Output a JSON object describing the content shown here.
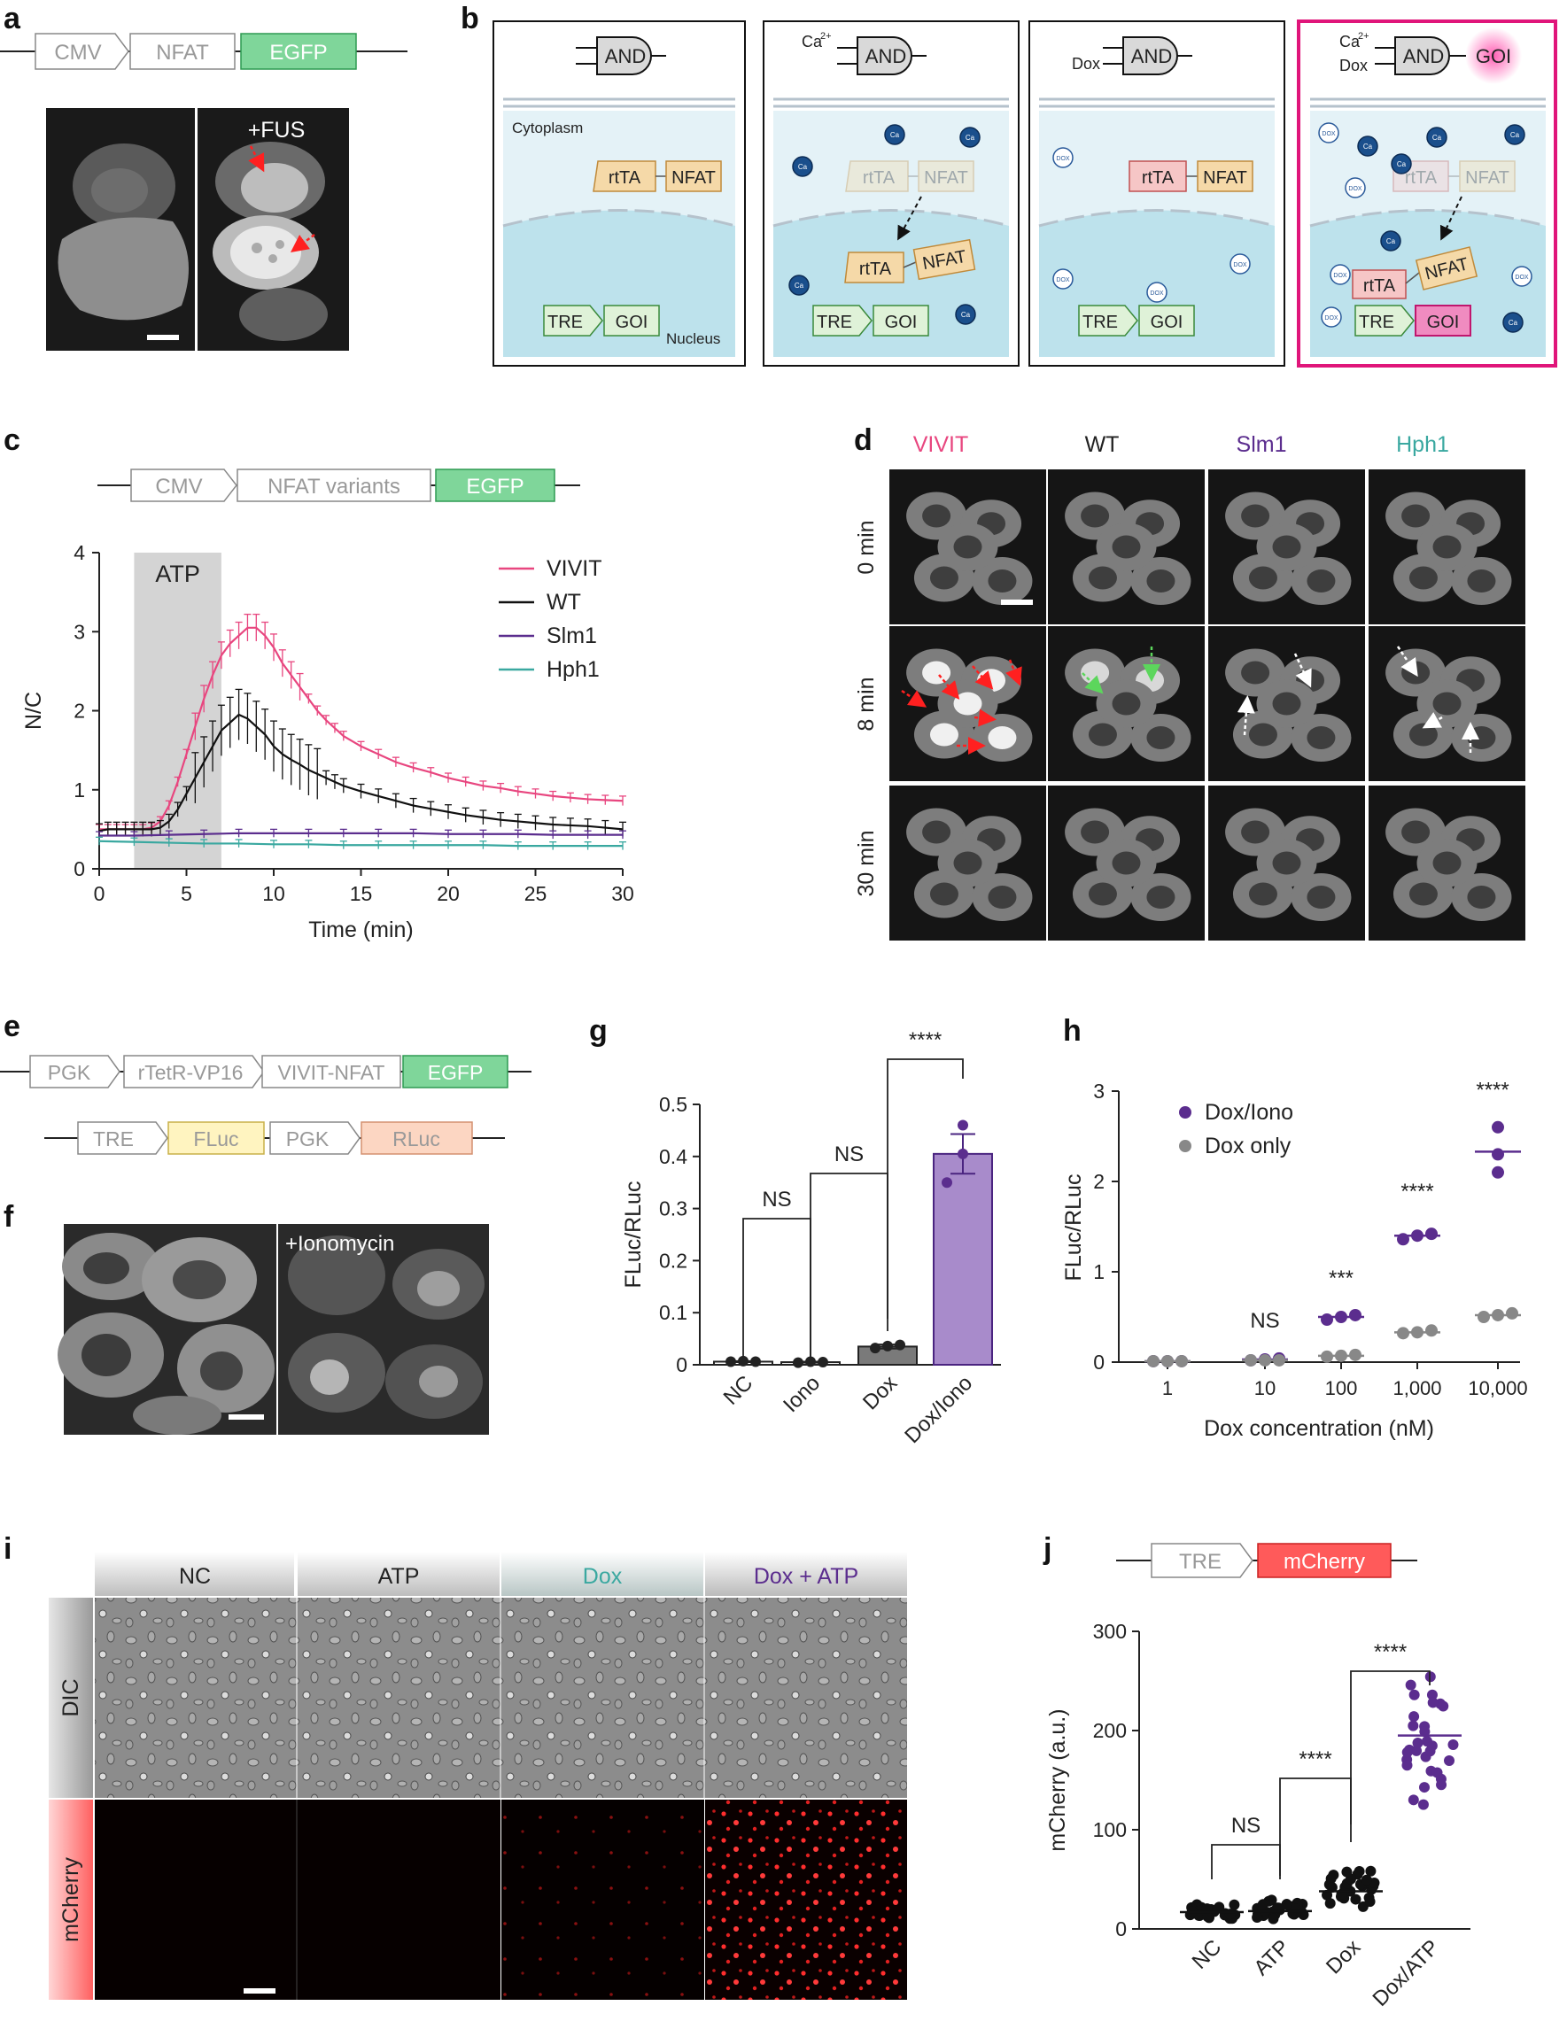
{
  "panels": {
    "a": {
      "letter": "a",
      "construct": [
        "CMV",
        "NFAT",
        "EGFP"
      ],
      "image_label": "+FUS"
    },
    "b": {
      "letter": "b",
      "gate": "AND",
      "ca": "Ca",
      "ca_sup": "2+",
      "dox": "Dox",
      "goi": "GOI",
      "cytoplasm": "Cytoplasm",
      "nucleus": "Nucleus",
      "rtta": "rtTA",
      "nfat": "NFAT",
      "tre": "TRE",
      "ca_dot": "Ca",
      "dox_dot": "DOX"
    },
    "c": {
      "letter": "c",
      "construct": [
        "CMV",
        "NFAT variants",
        "EGFP"
      ],
      "stim": "ATP"
    },
    "d": {
      "letter": "d",
      "columns": [
        "VIVIT",
        "WT",
        "Slm1",
        "Hph1"
      ],
      "rows": [
        "0 min",
        "8 min",
        "30 min"
      ]
    },
    "e": {
      "letter": "e",
      "construct1": [
        "PGK",
        "rTetR-VP16",
        "VIVIT-NFAT",
        "EGFP"
      ],
      "construct2": [
        "TRE",
        "FLuc",
        "PGK",
        "RLuc"
      ]
    },
    "f": {
      "letter": "f",
      "image_label": "+Ionomycin"
    },
    "g": {
      "letter": "g"
    },
    "h": {
      "letter": "h"
    },
    "i": {
      "letter": "i",
      "columns": [
        "NC",
        "ATP",
        "Dox",
        "Dox + ATP"
      ],
      "rows": [
        "DIC",
        "mCherry"
      ]
    },
    "j": {
      "letter": "j",
      "construct": [
        "TRE",
        "mCherry"
      ]
    }
  },
  "colors": {
    "vivit": "#e8467f",
    "wt": "#111111",
    "slm1": "#5b2d8e",
    "hph1": "#3aa8a0",
    "purple": "#5b2d8e",
    "magenta": "#e0157a",
    "egfp": "#3fbf6a"
  },
  "chart_data": [
    {
      "id": "c",
      "type": "line",
      "xlabel": "Time (min)",
      "ylabel": "N/C",
      "xlim": [
        0,
        30
      ],
      "ylim": [
        0,
        4
      ],
      "xticks": [
        "0",
        "5",
        "10",
        "15",
        "20",
        "25",
        "30"
      ],
      "yticks": [
        "0",
        "1",
        "2",
        "3",
        "4"
      ],
      "shaded": {
        "label": "ATP",
        "x": [
          2,
          7
        ]
      },
      "legend_position": "top-right",
      "series": [
        {
          "name": "VIVIT",
          "color": "#e8467f",
          "x": [
            0,
            0.5,
            1,
            1.5,
            2,
            2.5,
            3,
            3.5,
            4,
            4.5,
            5,
            5.5,
            6,
            6.5,
            7,
            7.5,
            8,
            8.5,
            9,
            9.5,
            10,
            10.5,
            11,
            11.5,
            12,
            12.5,
            13,
            13.5,
            14,
            15,
            16,
            17,
            18,
            19,
            20,
            21,
            22,
            23,
            24,
            25,
            26,
            27,
            28,
            29,
            30
          ],
          "y": [
            0.5,
            0.5,
            0.5,
            0.5,
            0.5,
            0.5,
            0.52,
            0.6,
            0.8,
            1.1,
            1.45,
            1.8,
            2.15,
            2.45,
            2.7,
            2.85,
            2.95,
            3.05,
            3.05,
            2.95,
            2.8,
            2.6,
            2.45,
            2.3,
            2.15,
            2.0,
            1.88,
            1.78,
            1.68,
            1.55,
            1.45,
            1.35,
            1.28,
            1.22,
            1.15,
            1.1,
            1.05,
            1.02,
            0.98,
            0.95,
            0.92,
            0.9,
            0.88,
            0.87,
            0.86
          ]
        },
        {
          "name": "WT",
          "color": "#111111",
          "x": [
            0,
            0.5,
            1,
            1.5,
            2,
            2.5,
            3,
            3.5,
            4,
            4.5,
            5,
            5.5,
            6,
            6.5,
            7,
            7.5,
            8,
            8.5,
            9,
            9.5,
            10,
            10.5,
            11,
            11.5,
            12,
            12.5,
            13,
            13.5,
            14,
            15,
            16,
            17,
            18,
            19,
            20,
            21,
            22,
            23,
            24,
            25,
            26,
            27,
            28,
            29,
            30
          ],
          "y": [
            0.48,
            0.5,
            0.5,
            0.5,
            0.5,
            0.5,
            0.5,
            0.52,
            0.6,
            0.75,
            0.95,
            1.15,
            1.35,
            1.55,
            1.75,
            1.85,
            1.95,
            1.9,
            1.8,
            1.7,
            1.55,
            1.45,
            1.38,
            1.32,
            1.25,
            1.2,
            1.15,
            1.1,
            1.05,
            0.98,
            0.92,
            0.86,
            0.8,
            0.76,
            0.72,
            0.68,
            0.65,
            0.62,
            0.6,
            0.58,
            0.56,
            0.55,
            0.54,
            0.52,
            0.5
          ]
        },
        {
          "name": "Slm1",
          "color": "#5b2d8e",
          "x": [
            0,
            2,
            4,
            6,
            8,
            10,
            12,
            14,
            16,
            18,
            20,
            22,
            24,
            26,
            28,
            30
          ],
          "y": [
            0.42,
            0.42,
            0.43,
            0.44,
            0.45,
            0.45,
            0.45,
            0.45,
            0.45,
            0.45,
            0.44,
            0.44,
            0.44,
            0.43,
            0.43,
            0.43
          ]
        },
        {
          "name": "Hph1",
          "color": "#3aa8a0",
          "x": [
            0,
            2,
            4,
            6,
            8,
            10,
            12,
            14,
            16,
            18,
            20,
            22,
            24,
            26,
            28,
            30
          ],
          "y": [
            0.35,
            0.34,
            0.33,
            0.32,
            0.32,
            0.31,
            0.31,
            0.3,
            0.3,
            0.3,
            0.3,
            0.3,
            0.29,
            0.29,
            0.29,
            0.29
          ]
        }
      ]
    },
    {
      "id": "g",
      "type": "bar",
      "ylabel": "FLuc/RLuc",
      "ylim": [
        0,
        0.5
      ],
      "yticks": [
        "0",
        "0.1",
        "0.2",
        "0.3",
        "0.4",
        "0.5"
      ],
      "categories": [
        "NC",
        "Iono",
        "Dox",
        "Dox/Iono"
      ],
      "values": [
        0.006,
        0.005,
        0.035,
        0.405
      ],
      "errors": [
        0.001,
        0.001,
        0.004,
        0.038
      ],
      "points": [
        [
          0.006,
          0.007,
          0.006
        ],
        [
          0.004,
          0.006,
          0.005
        ],
        [
          0.032,
          0.036,
          0.038
        ],
        [
          0.46,
          0.35,
          0.405
        ]
      ],
      "significance": [
        {
          "from": "NC",
          "to": "Iono",
          "label": "NS"
        },
        {
          "from": "Iono",
          "to": "Dox",
          "label": "NS"
        },
        {
          "from": "Dox",
          "to": "Dox/Iono",
          "label": "****"
        }
      ]
    },
    {
      "id": "h",
      "type": "scatter",
      "xlabel": "Dox concentration (nM)",
      "ylabel": "FLuc/RLuc",
      "ylim": [
        0,
        3
      ],
      "yticks": [
        "0",
        "1",
        "2",
        "3"
      ],
      "categories": [
        "1",
        "10",
        "100",
        "1,000",
        "10,000"
      ],
      "legend_position": "top-left",
      "series": [
        {
          "name": "Dox/Iono",
          "color": "#5b2d8e",
          "means": [
            0.01,
            0.03,
            0.5,
            1.4,
            2.33
          ],
          "points": [
            [
              0.01,
              0.01,
              0.01
            ],
            [
              0.02,
              0.03,
              0.04
            ],
            [
              0.47,
              0.5,
              0.52
            ],
            [
              1.36,
              1.4,
              1.42
            ],
            [
              2.1,
              2.3,
              2.6
            ]
          ]
        },
        {
          "name": "Dox only",
          "color": "#888888",
          "means": [
            0.01,
            0.02,
            0.07,
            0.33,
            0.52
          ],
          "points": [
            [
              0.01,
              0.01,
              0.01
            ],
            [
              0.02,
              0.02,
              0.02
            ],
            [
              0.06,
              0.07,
              0.08
            ],
            [
              0.32,
              0.33,
              0.35
            ],
            [
              0.5,
              0.52,
              0.54
            ]
          ]
        }
      ],
      "significance": [
        "",
        "NS",
        "***",
        "****",
        "****"
      ]
    },
    {
      "id": "j",
      "type": "scatter",
      "ylabel": "mCherry (a.u.)",
      "ylim": [
        0,
        300
      ],
      "yticks": [
        "0",
        "100",
        "200",
        "300"
      ],
      "categories": [
        "NC",
        "ATP",
        "Dox",
        "Dox/ATP"
      ],
      "means": [
        17,
        18,
        38,
        195
      ],
      "spread": [
        [
          9,
          28
        ],
        [
          10,
          30
        ],
        [
          22,
          68
        ],
        [
          118,
          260
        ]
      ],
      "significance": [
        {
          "from": "NC",
          "to": "ATP",
          "label": "NS"
        },
        {
          "from": "ATP",
          "to": "Dox",
          "label": "****"
        },
        {
          "from": "Dox",
          "to": "Dox/ATP",
          "label": "****"
        }
      ]
    }
  ]
}
